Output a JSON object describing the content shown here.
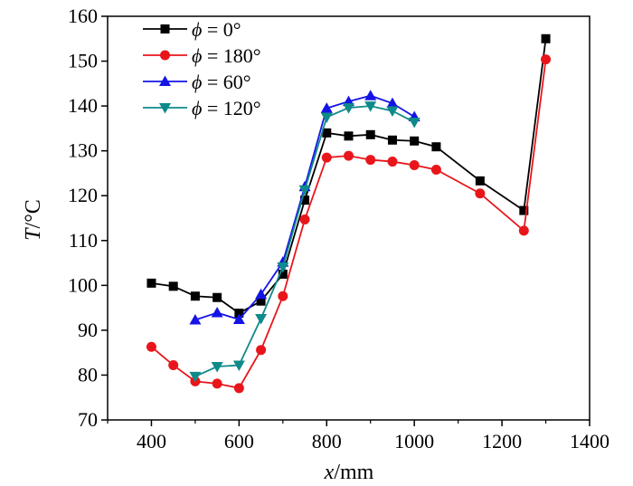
{
  "chart_data": {
    "type": "line",
    "xlabel_var": "x",
    "xlabel_unit": "/mm",
    "ylabel_var": "T",
    "ylabel_unit": "/°C",
    "xlim": [
      300,
      1400
    ],
    "ylim": [
      70,
      160
    ],
    "xticks": [
      "400",
      "600",
      "800",
      "1000",
      "1200",
      "1400"
    ],
    "xtick_values": [
      400,
      600,
      800,
      1000,
      1200,
      1400
    ],
    "yticks": [
      "70",
      "80",
      "90",
      "100",
      "110",
      "120",
      "130",
      "140",
      "150",
      "160"
    ],
    "ytick_values": [
      70,
      80,
      90,
      100,
      110,
      120,
      130,
      140,
      150,
      160
    ],
    "grid": false,
    "legend_position": "top-left",
    "series": [
      {
        "name_var": "ϕ",
        "name_rest": " = 0°",
        "color": "#000000",
        "marker": "square",
        "x": [
          400,
          450,
          500,
          550,
          600,
          650,
          700,
          750,
          800,
          850,
          900,
          950,
          1000,
          1050,
          1150,
          1250,
          1300
        ],
        "y": [
          100.5,
          99.8,
          97.6,
          97.3,
          93.8,
          96.5,
          102.5,
          119.0,
          134.0,
          133.3,
          133.6,
          132.4,
          132.2,
          130.9,
          123.3,
          116.7,
          155.0
        ]
      },
      {
        "name_var": "ϕ",
        "name_rest": " = 180°",
        "color": "#e8161b",
        "marker": "circle",
        "x": [
          400,
          450,
          500,
          550,
          600,
          650,
          700,
          750,
          800,
          850,
          900,
          950,
          1000,
          1050,
          1150,
          1250,
          1300
        ],
        "y": [
          86.3,
          82.2,
          78.6,
          78.1,
          77.1,
          85.6,
          97.6,
          114.7,
          128.5,
          128.9,
          128.0,
          127.6,
          126.8,
          125.8,
          120.5,
          112.2,
          150.4
        ]
      },
      {
        "name_var": "ϕ",
        "name_rest": " = 60°",
        "color": "#1414e6",
        "marker": "triangle-up",
        "x": [
          500,
          550,
          600,
          650,
          700,
          750,
          800,
          850,
          900,
          950,
          1000
        ],
        "y": [
          92.3,
          93.9,
          92.4,
          98.0,
          105.2,
          122.0,
          139.5,
          141.0,
          142.3,
          140.6,
          137.6
        ]
      },
      {
        "name_var": "ϕ",
        "name_rest": " = 120°",
        "color": "#0f8a8a",
        "marker": "triangle-down",
        "x": [
          500,
          550,
          600,
          650,
          700,
          750,
          800,
          850,
          900,
          950,
          1000
        ],
        "y": [
          79.7,
          81.9,
          82.2,
          92.6,
          104.1,
          121.3,
          137.5,
          139.6,
          140.0,
          138.9,
          136.4
        ]
      }
    ]
  }
}
